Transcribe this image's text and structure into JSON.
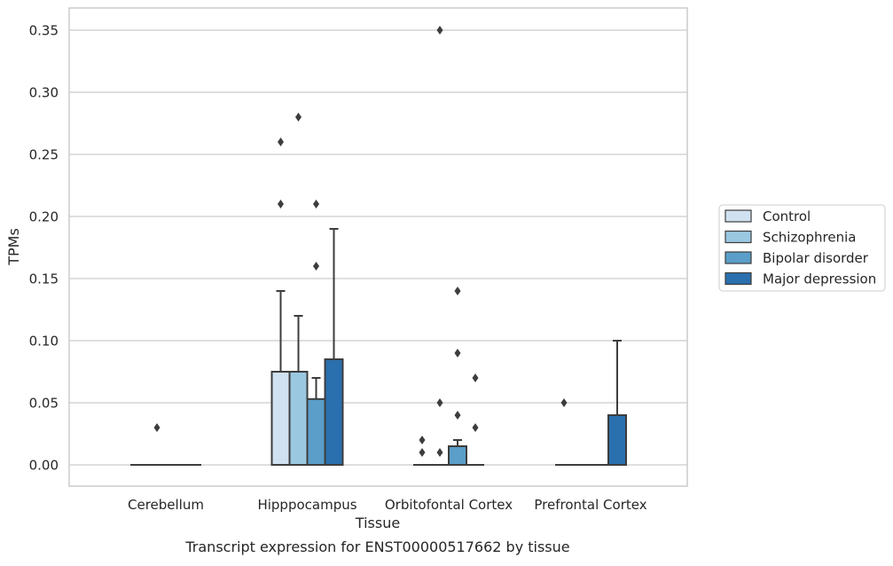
{
  "chart_data": {
    "type": "box",
    "ylabel": "TPMs",
    "xlabel": "Tissue",
    "caption": "Transcript expression for ENST00000517662 by tissue",
    "ylim": [
      -0.0175,
      0.367
    ],
    "yticks": [
      0.0,
      0.05,
      0.1,
      0.15,
      0.2,
      0.25,
      0.3,
      0.35
    ],
    "ytick_labels": [
      "0.00",
      "0.05",
      "0.10",
      "0.15",
      "0.20",
      "0.25",
      "0.30",
      "0.35"
    ],
    "grid": "horizontal",
    "legend_position": "right",
    "categories": [
      "Cerebellum",
      "Hipppocampus",
      "Orbitofontal Cortex",
      "Prefrontal Cortex"
    ],
    "series": [
      {
        "name": "Control",
        "color": "#d0e1f2",
        "boxes": [
          {
            "whislo": 0.0,
            "q1": 0.0,
            "med": 0.0,
            "q3": 0.0,
            "whishi": 0.0,
            "fliers": []
          },
          {
            "whislo": 0.0,
            "q1": 0.0,
            "med": 0.0,
            "q3": 0.075,
            "whishi": 0.14,
            "fliers": [
              0.21,
              0.26
            ]
          },
          {
            "whislo": 0.0,
            "q1": 0.0,
            "med": 0.0,
            "q3": 0.0,
            "whishi": 0.0,
            "fliers": [
              0.01,
              0.02
            ]
          },
          {
            "whislo": 0.0,
            "q1": 0.0,
            "med": 0.0,
            "q3": 0.0,
            "whishi": 0.0,
            "fliers": [
              0.05
            ]
          }
        ]
      },
      {
        "name": "Schizophrenia",
        "color": "#9ac8e0",
        "boxes": [
          {
            "whislo": 0.0,
            "q1": 0.0,
            "med": 0.0,
            "q3": 0.0,
            "whishi": 0.0,
            "fliers": [
              0.03
            ]
          },
          {
            "whislo": 0.0,
            "q1": 0.0,
            "med": 0.0,
            "q3": 0.075,
            "whishi": 0.12,
            "fliers": [
              0.28
            ]
          },
          {
            "whislo": 0.0,
            "q1": 0.0,
            "med": 0.0,
            "q3": 0.0,
            "whishi": 0.0,
            "fliers": [
              0.01,
              0.05,
              0.35
            ]
          },
          {
            "whislo": 0.0,
            "q1": 0.0,
            "med": 0.0,
            "q3": 0.0,
            "whishi": 0.0,
            "fliers": []
          }
        ]
      },
      {
        "name": "Bipolar disorder",
        "color": "#5a9ec9",
        "boxes": [
          {
            "whislo": 0.0,
            "q1": 0.0,
            "med": 0.0,
            "q3": 0.0,
            "whishi": 0.0,
            "fliers": []
          },
          {
            "whislo": 0.0,
            "q1": 0.0,
            "med": 0.0,
            "q3": 0.053,
            "whishi": 0.07,
            "fliers": [
              0.16,
              0.21
            ]
          },
          {
            "whislo": 0.0,
            "q1": 0.0,
            "med": 0.0,
            "q3": 0.015,
            "whishi": 0.02,
            "fliers": [
              0.04,
              0.09,
              0.14
            ]
          },
          {
            "whislo": 0.0,
            "q1": 0.0,
            "med": 0.0,
            "q3": 0.0,
            "whishi": 0.0,
            "fliers": []
          }
        ]
      },
      {
        "name": "Major depression",
        "color": "#2a6fae",
        "boxes": [
          {
            "whislo": 0.0,
            "q1": 0.0,
            "med": 0.0,
            "q3": 0.0,
            "whishi": 0.0,
            "fliers": []
          },
          {
            "whislo": 0.0,
            "q1": 0.0,
            "med": 0.0,
            "q3": 0.085,
            "whishi": 0.19,
            "fliers": []
          },
          {
            "whislo": 0.0,
            "q1": 0.0,
            "med": 0.0,
            "q3": 0.0,
            "whishi": 0.0,
            "fliers": [
              0.03,
              0.07
            ]
          },
          {
            "whislo": 0.0,
            "q1": 0.0,
            "med": 0.0,
            "q3": 0.04,
            "whishi": 0.1,
            "fliers": []
          }
        ]
      }
    ]
  }
}
